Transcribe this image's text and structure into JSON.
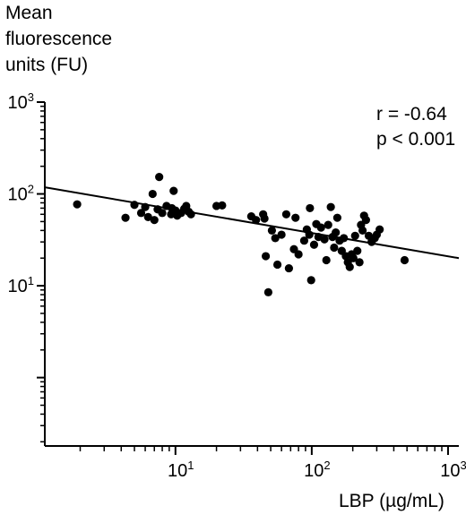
{
  "chart_data": {
    "type": "scatter",
    "ylabel_lines": [
      "Mean",
      "fluorescence",
      "units (FU)"
    ],
    "xlabel": "LBP (µg/mL)",
    "annotation_lines": [
      "r = -0.64",
      "p < 0.001"
    ],
    "x_scale": "log",
    "y_scale": "log",
    "xlim": [
      1.1,
      1200
    ],
    "ylim": [
      0.18,
      1000
    ],
    "x_ticks": [
      {
        "base": "10",
        "exp": "1",
        "value": 10
      },
      {
        "base": "10",
        "exp": "2",
        "value": 100
      },
      {
        "base": "10",
        "exp": "3",
        "value": 1000
      }
    ],
    "y_ticks": [
      {
        "base": "10",
        "exp": "1",
        "value": 10
      },
      {
        "base": "10",
        "exp": "2",
        "value": 100
      },
      {
        "base": "10",
        "exp": "3",
        "value": 1000
      }
    ],
    "grid": false,
    "regression_line": {
      "x": [
        1.1,
        1200
      ],
      "y": [
        118,
        20
      ]
    },
    "points": [
      {
        "x": 1.9,
        "y": 77
      },
      {
        "x": 4.3,
        "y": 55
      },
      {
        "x": 5.0,
        "y": 76
      },
      {
        "x": 5.6,
        "y": 62
      },
      {
        "x": 6.0,
        "y": 72
      },
      {
        "x": 6.3,
        "y": 56
      },
      {
        "x": 6.8,
        "y": 100
      },
      {
        "x": 7.0,
        "y": 52
      },
      {
        "x": 7.4,
        "y": 68
      },
      {
        "x": 7.6,
        "y": 153
      },
      {
        "x": 8.0,
        "y": 62
      },
      {
        "x": 8.6,
        "y": 74
      },
      {
        "x": 9.3,
        "y": 60
      },
      {
        "x": 9.4,
        "y": 70
      },
      {
        "x": 9.7,
        "y": 108
      },
      {
        "x": 10.0,
        "y": 66
      },
      {
        "x": 10.3,
        "y": 58
      },
      {
        "x": 11.0,
        "y": 62
      },
      {
        "x": 11.6,
        "y": 69
      },
      {
        "x": 12.0,
        "y": 74
      },
      {
        "x": 12.5,
        "y": 64
      },
      {
        "x": 13.0,
        "y": 60
      },
      {
        "x": 20.0,
        "y": 74
      },
      {
        "x": 22.0,
        "y": 75
      },
      {
        "x": 36.0,
        "y": 57
      },
      {
        "x": 39.0,
        "y": 52
      },
      {
        "x": 44.0,
        "y": 60
      },
      {
        "x": 45.0,
        "y": 54
      },
      {
        "x": 46.0,
        "y": 21
      },
      {
        "x": 48.0,
        "y": 8.5
      },
      {
        "x": 51.0,
        "y": 40
      },
      {
        "x": 54.0,
        "y": 33
      },
      {
        "x": 56.0,
        "y": 17
      },
      {
        "x": 60.0,
        "y": 36
      },
      {
        "x": 65.0,
        "y": 60
      },
      {
        "x": 68.0,
        "y": 15.5
      },
      {
        "x": 74.0,
        "y": 25
      },
      {
        "x": 76.0,
        "y": 55
      },
      {
        "x": 80.0,
        "y": 22
      },
      {
        "x": 88.0,
        "y": 31
      },
      {
        "x": 92.0,
        "y": 41
      },
      {
        "x": 96.0,
        "y": 36
      },
      {
        "x": 97.0,
        "y": 70
      },
      {
        "x": 99.0,
        "y": 11.5
      },
      {
        "x": 104.0,
        "y": 28
      },
      {
        "x": 108.0,
        "y": 47
      },
      {
        "x": 112.0,
        "y": 34
      },
      {
        "x": 117.0,
        "y": 43
      },
      {
        "x": 124.0,
        "y": 32
      },
      {
        "x": 128.0,
        "y": 19
      },
      {
        "x": 132.0,
        "y": 46
      },
      {
        "x": 138.0,
        "y": 72
      },
      {
        "x": 142.0,
        "y": 34
      },
      {
        "x": 146.0,
        "y": 26
      },
      {
        "x": 150.0,
        "y": 38
      },
      {
        "x": 154.0,
        "y": 55
      },
      {
        "x": 160.0,
        "y": 31
      },
      {
        "x": 166.0,
        "y": 24
      },
      {
        "x": 172.0,
        "y": 33
      },
      {
        "x": 178.0,
        "y": 21
      },
      {
        "x": 184.0,
        "y": 18
      },
      {
        "x": 190.0,
        "y": 16
      },
      {
        "x": 196.0,
        "y": 22
      },
      {
        "x": 202.0,
        "y": 20
      },
      {
        "x": 208.0,
        "y": 35
      },
      {
        "x": 216.0,
        "y": 24
      },
      {
        "x": 224.0,
        "y": 18
      },
      {
        "x": 230.0,
        "y": 46
      },
      {
        "x": 236.0,
        "y": 40
      },
      {
        "x": 242.0,
        "y": 58
      },
      {
        "x": 250.0,
        "y": 52
      },
      {
        "x": 262.0,
        "y": 35
      },
      {
        "x": 275.0,
        "y": 30
      },
      {
        "x": 290.0,
        "y": 33
      },
      {
        "x": 300.0,
        "y": 36
      },
      {
        "x": 315.0,
        "y": 41
      },
      {
        "x": 480.0,
        "y": 19
      }
    ]
  }
}
